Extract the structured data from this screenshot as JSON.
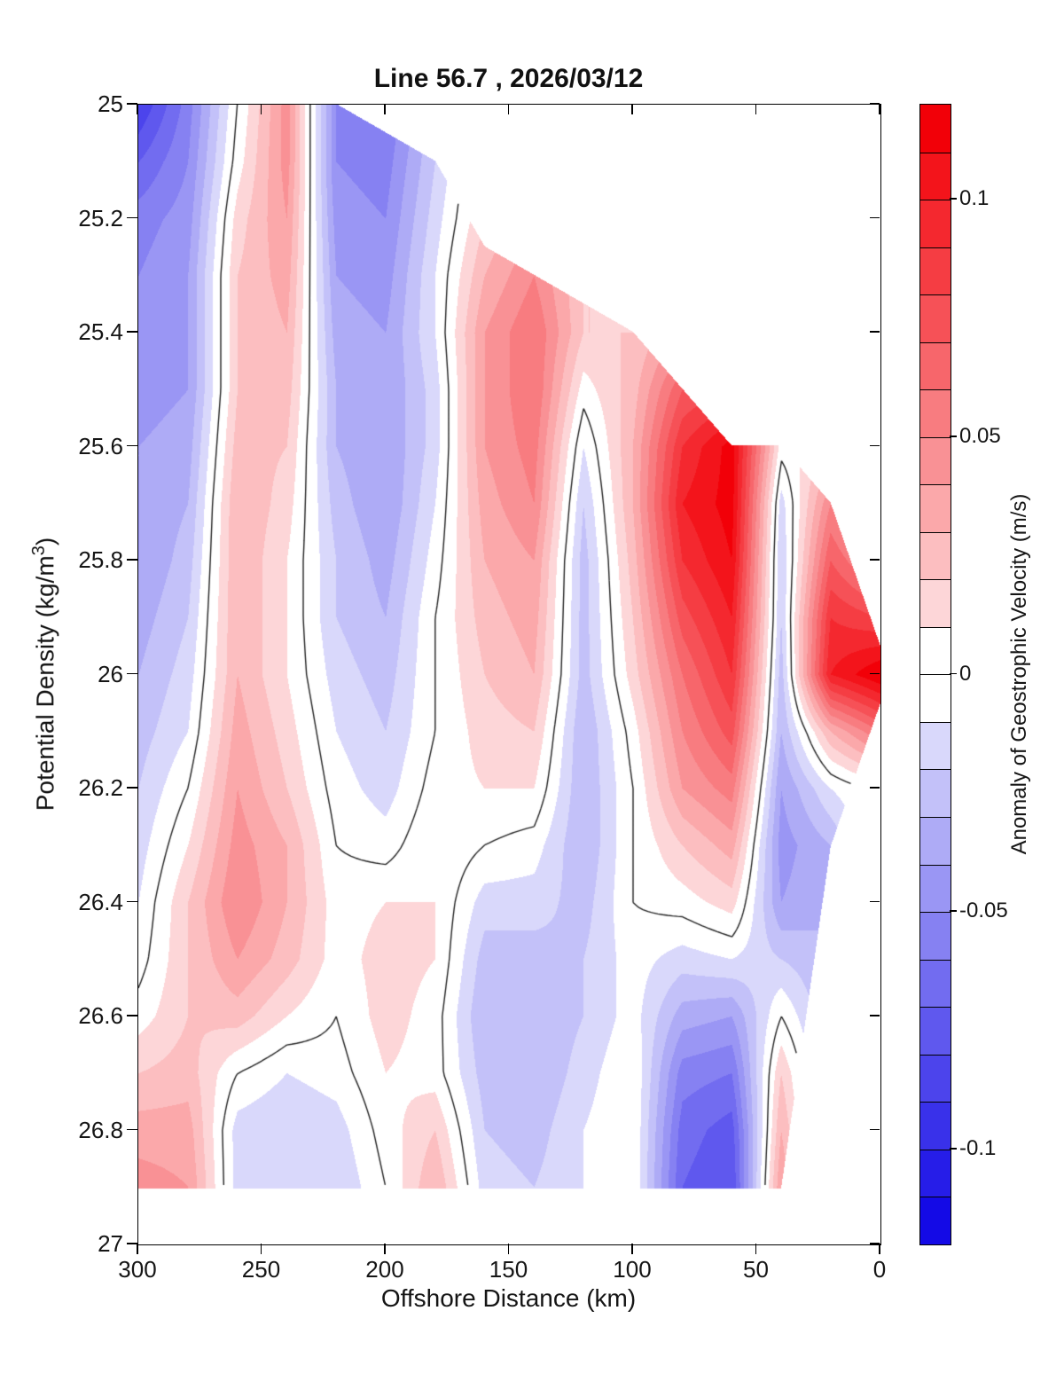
{
  "title": "Line 56.7 , 2026/03/12",
  "x_axis": {
    "label": "Offshore Distance (km)",
    "ticks": [
      300,
      250,
      200,
      150,
      100,
      50,
      0
    ],
    "tick_labels": [
      "300",
      "250",
      "200",
      "150",
      "100",
      "50",
      "0"
    ],
    "min": 0,
    "max": 300,
    "reversed": true
  },
  "y_axis": {
    "label_main": "Potential Density (kg/m",
    "label_sup": "3",
    "label_end": ")",
    "ticks": [
      25,
      25.2,
      25.4,
      25.6,
      25.8,
      26,
      26.2,
      26.4,
      26.6,
      26.8,
      27
    ],
    "tick_labels": [
      "25",
      "25.2",
      "25.4",
      "25.6",
      "25.8",
      "26",
      "26.2",
      "26.4",
      "26.6",
      "26.8",
      "27"
    ],
    "min": 25,
    "max": 27,
    "reversed_depth_down": true
  },
  "colorbar": {
    "label": "Anomaly of Geostrophic Velocity (m/s)",
    "vmin": -0.12,
    "vmax": 0.12,
    "step": 0.01,
    "n_segments": 24,
    "ticks": [
      {
        "value": 0.1,
        "label": "0.1"
      },
      {
        "value": 0.05,
        "label": "0.05"
      },
      {
        "value": 0,
        "label": "0"
      },
      {
        "value": -0.05,
        "label": "-0.05"
      },
      {
        "value": -0.1,
        "label": "-0.1"
      }
    ],
    "positive_color": "#f20008",
    "negative_color": "#140ae6",
    "zero_color": "#ffffff",
    "contour_line_color": "#222222"
  },
  "chart_data": {
    "type": "filled_contour",
    "title": "Line 56.7 , 2026/03/12",
    "xlabel": "Offshore Distance (km)",
    "ylabel": "Potential Density (kg/m3)",
    "zlabel": "Anomaly of Geostrophic Velocity (m/s)",
    "xlim": [
      300,
      0
    ],
    "ylim": [
      25,
      27
    ],
    "levels_min": -0.12,
    "levels_max": 0.12,
    "levels_step": 0.01,
    "zero_contour": true,
    "x_km": [
      300,
      280,
      260,
      240,
      220,
      200,
      180,
      160,
      140,
      120,
      100,
      80,
      60,
      40,
      20,
      0
    ],
    "density": [
      25.0,
      25.1,
      25.2,
      25.3,
      25.4,
      25.5,
      25.6,
      25.7,
      25.8,
      25.9,
      26.0,
      26.1,
      26.2,
      26.3,
      26.4,
      26.5,
      26.6,
      26.7,
      26.8,
      26.9
    ],
    "mask_top": [
      25.0,
      25.0,
      25.0,
      25.0,
      25.0,
      25.05,
      25.1,
      25.25,
      25.3,
      25.35,
      25.4,
      25.5,
      25.6,
      25.6,
      25.7,
      25.95
    ],
    "mask_bottom": [
      26.9,
      26.9,
      26.9,
      26.9,
      26.9,
      26.9,
      26.9,
      26.9,
      26.9,
      26.9,
      26.9,
      26.9,
      26.9,
      26.9,
      26.3,
      26.05
    ],
    "values_by_column": [
      [
        -0.09,
        -0.07,
        -0.055,
        -0.05,
        -0.045,
        -0.045,
        -0.04,
        -0.04,
        -0.04,
        -0.035,
        -0.03,
        -0.025,
        -0.02,
        -0.015,
        -0.01,
        -0.005,
        0.005,
        0.02,
        0.035,
        0.045
      ],
      [
        -0.055,
        -0.05,
        -0.045,
        -0.04,
        -0.04,
        -0.04,
        -0.035,
        -0.03,
        -0.025,
        -0.02,
        -0.015,
        -0.01,
        0.0,
        0.01,
        0.02,
        0.02,
        0.02,
        0.025,
        0.035,
        0.04
      ],
      [
        0.0,
        0.005,
        0.015,
        0.02,
        0.02,
        0.02,
        0.025,
        0.03,
        0.03,
        0.03,
        0.03,
        0.035,
        0.04,
        0.045,
        0.05,
        0.04,
        0.025,
        0.0,
        -0.015,
        -0.015
      ],
      [
        0.045,
        0.045,
        0.04,
        0.035,
        0.03,
        0.025,
        0.02,
        0.015,
        0.01,
        0.01,
        0.01,
        0.015,
        0.02,
        0.03,
        0.03,
        0.025,
        0.01,
        -0.01,
        -0.02,
        -0.02
      ],
      [
        -0.05,
        -0.05,
        -0.045,
        -0.04,
        -0.035,
        -0.03,
        -0.03,
        -0.025,
        -0.02,
        -0.02,
        -0.015,
        -0.01,
        -0.005,
        0.0,
        0.005,
        0.005,
        0.0,
        -0.005,
        -0.015,
        -0.02
      ],
      [
        -0.06,
        -0.055,
        -0.05,
        -0.045,
        -0.04,
        -0.04,
        -0.04,
        -0.04,
        -0.035,
        -0.03,
        -0.025,
        -0.02,
        -0.015,
        -0.005,
        0.01,
        0.015,
        0.015,
        0.01,
        0.005,
        0.0
      ],
      [
        -0.025,
        -0.02,
        -0.015,
        -0.01,
        -0.01,
        -0.015,
        -0.015,
        -0.01,
        -0.005,
        0.0,
        0.0,
        0.0,
        0.005,
        0.01,
        0.01,
        0.01,
        0.005,
        0.005,
        0.02,
        0.03
      ],
      [
        0.01,
        0.015,
        0.02,
        0.03,
        0.04,
        0.04,
        0.04,
        0.035,
        0.03,
        0.025,
        0.02,
        0.015,
        0.01,
        0.0,
        -0.015,
        -0.025,
        -0.03,
        -0.025,
        -0.02,
        -0.015
      ],
      [
        0.02,
        0.03,
        0.04,
        0.05,
        0.06,
        0.06,
        0.055,
        0.05,
        0.04,
        0.035,
        0.03,
        0.02,
        0.01,
        -0.005,
        -0.015,
        -0.025,
        -0.03,
        -0.03,
        -0.025,
        -0.02
      ],
      [
        0.01,
        0.015,
        0.02,
        0.02,
        0.02,
        0.005,
        -0.01,
        -0.02,
        -0.025,
        -0.025,
        -0.025,
        -0.03,
        -0.03,
        -0.03,
        -0.025,
        -0.02,
        -0.02,
        -0.015,
        -0.01,
        -0.01
      ],
      [
        0.01,
        0.015,
        0.02,
        0.02,
        0.02,
        0.025,
        0.03,
        0.03,
        0.025,
        0.02,
        0.015,
        0.005,
        0.0,
        0.0,
        0.0,
        -0.005,
        -0.005,
        0.0,
        0.0,
        0.0
      ],
      [
        0.02,
        0.03,
        0.04,
        0.04,
        0.04,
        0.07,
        0.09,
        0.1,
        0.09,
        0.075,
        0.06,
        0.05,
        0.04,
        0.02,
        0.005,
        -0.015,
        -0.035,
        -0.055,
        -0.065,
        -0.07
      ],
      [
        0.03,
        0.04,
        0.05,
        0.05,
        0.05,
        0.08,
        0.115,
        0.115,
        0.11,
        0.1,
        0.09,
        0.075,
        0.055,
        0.035,
        0.015,
        -0.01,
        -0.04,
        -0.06,
        -0.075,
        -0.08
      ],
      [
        0.005,
        0.005,
        0.005,
        0.005,
        0.005,
        0.005,
        0.005,
        -0.015,
        -0.02,
        -0.02,
        -0.025,
        -0.03,
        -0.04,
        -0.045,
        -0.04,
        -0.02,
        0.0,
        0.02,
        0.03,
        0.04
      ],
      [
        0.005,
        0.005,
        0.005,
        0.005,
        0.005,
        0.005,
        0.02,
        0.05,
        0.07,
        0.09,
        0.1,
        0.03,
        -0.01,
        -0.03,
        -0.03,
        -0.03,
        -0.03,
        -0.03,
        -0.03,
        -0.03
      ],
      [
        0.005,
        0.005,
        0.005,
        0.005,
        0.005,
        0.005,
        0.005,
        0.005,
        0.04,
        0.08,
        0.12,
        0.06,
        0.005,
        0.005,
        0.005,
        0.005,
        0.005,
        0.005,
        0.005,
        0.005
      ]
    ]
  }
}
